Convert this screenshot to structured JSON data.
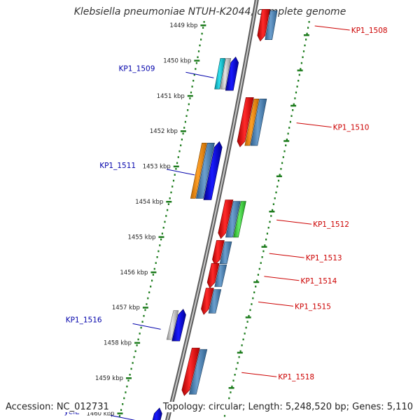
{
  "title": "Klebsiella pneumoniae NTUH-K2044, complete genome",
  "footer": {
    "accession": "Accession: NC_012731",
    "topology": "Topology: circular; Length: 5,248,520 bp; Genes: 5,110"
  },
  "colors": {
    "backbone": "#8a8a8a",
    "tick": "#1a7a1a",
    "label_forward": "#cc0000",
    "label_reverse": "#0000aa",
    "red": "#ee0000",
    "blue": "#0000ee",
    "steel": "#4a82b8",
    "orange": "#f08a00",
    "green": "#33cc33",
    "cyan": "#00bbcc",
    "gray": "#b4b4b4"
  },
  "scale": {
    "unit": "kbp",
    "ticks": [
      {
        "kbp": 1449,
        "label": "1449 kbp"
      },
      {
        "kbp": 1450,
        "label": "1450 kbp"
      },
      {
        "kbp": 1451,
        "label": "1451 kbp"
      },
      {
        "kbp": 1452,
        "label": "1452 kbp"
      },
      {
        "kbp": 1453,
        "label": "1453 kbp"
      },
      {
        "kbp": 1454,
        "label": "1454 kbp"
      },
      {
        "kbp": 1455,
        "label": "1455 kbp"
      },
      {
        "kbp": 1456,
        "label": "1456 kbp"
      },
      {
        "kbp": 1457,
        "label": "1457 kbp"
      },
      {
        "kbp": 1458,
        "label": "1458 kbp"
      },
      {
        "kbp": 1459,
        "label": "1459 kbp"
      },
      {
        "kbp": 1460,
        "label": "1460 kbp"
      }
    ]
  },
  "genes": [
    {
      "name": "KP1_1508",
      "strand": "forward",
      "start_kbp": 1448.55,
      "end_kbp": 1449.45,
      "blocks": [
        {
          "color": "red",
          "shape": "arrow"
        },
        {
          "color": "steel",
          "shape": "bar"
        }
      ]
    },
    {
      "name": "KP1_1509",
      "strand": "reverse",
      "start_kbp": 1449.9,
      "end_kbp": 1450.85,
      "blocks": [
        {
          "color": "cyan",
          "shape": "bar"
        },
        {
          "color": "gray",
          "shape": "bar"
        },
        {
          "color": "blue",
          "shape": "arrow"
        }
      ]
    },
    {
      "name": "KP1_1510",
      "strand": "forward",
      "start_kbp": 1451.05,
      "end_kbp": 1452.45,
      "blocks": [
        {
          "color": "red",
          "shape": "arrow"
        },
        {
          "color": "orange",
          "shape": "bar"
        },
        {
          "color": "steel",
          "shape": "bar"
        }
      ]
    },
    {
      "name": "KP1_1511",
      "strand": "reverse",
      "start_kbp": 1452.3,
      "end_kbp": 1453.95,
      "blocks": [
        {
          "color": "orange",
          "shape": "bar"
        },
        {
          "color": "steel",
          "shape": "bar"
        },
        {
          "color": "blue",
          "shape": "arrow"
        }
      ]
    },
    {
      "name": "KP1_1512",
      "strand": "forward",
      "start_kbp": 1453.95,
      "end_kbp": 1455.05,
      "blocks": [
        {
          "color": "red",
          "shape": "arrow"
        },
        {
          "color": "steel",
          "shape": "bar"
        },
        {
          "color": "green",
          "shape": "bar"
        }
      ]
    },
    {
      "name": "KP1_1513",
      "strand": "forward",
      "start_kbp": 1455.1,
      "end_kbp": 1455.8,
      "blocks": [
        {
          "color": "red",
          "shape": "arrow"
        },
        {
          "color": "steel",
          "shape": "bar"
        }
      ]
    },
    {
      "name": "KP1_1514",
      "strand": "forward",
      "start_kbp": 1455.75,
      "end_kbp": 1456.45,
      "blocks": [
        {
          "color": "red",
          "shape": "arrow"
        },
        {
          "color": "steel",
          "shape": "bar"
        }
      ]
    },
    {
      "name": "KP1_1515",
      "strand": "forward",
      "start_kbp": 1456.45,
      "end_kbp": 1457.2,
      "blocks": [
        {
          "color": "red",
          "shape": "arrow"
        },
        {
          "color": "steel",
          "shape": "bar"
        }
      ]
    },
    {
      "name": "KP1_1516",
      "strand": "reverse",
      "start_kbp": 1457.05,
      "end_kbp": 1457.95,
      "blocks": [
        {
          "color": "gray",
          "shape": "bar"
        },
        {
          "color": "blue",
          "shape": "arrow"
        }
      ]
    },
    {
      "name": "KP1_1518",
      "strand": "forward",
      "start_kbp": 1458.15,
      "end_kbp": 1459.5,
      "blocks": [
        {
          "color": "red",
          "shape": "arrow"
        },
        {
          "color": "steel",
          "shape": "bar"
        }
      ]
    },
    {
      "name": "yeiE",
      "strand": "reverse",
      "start_kbp": 1459.85,
      "end_kbp": 1460.35,
      "blocks": [
        {
          "color": "blue",
          "shape": "arrow"
        }
      ]
    }
  ]
}
